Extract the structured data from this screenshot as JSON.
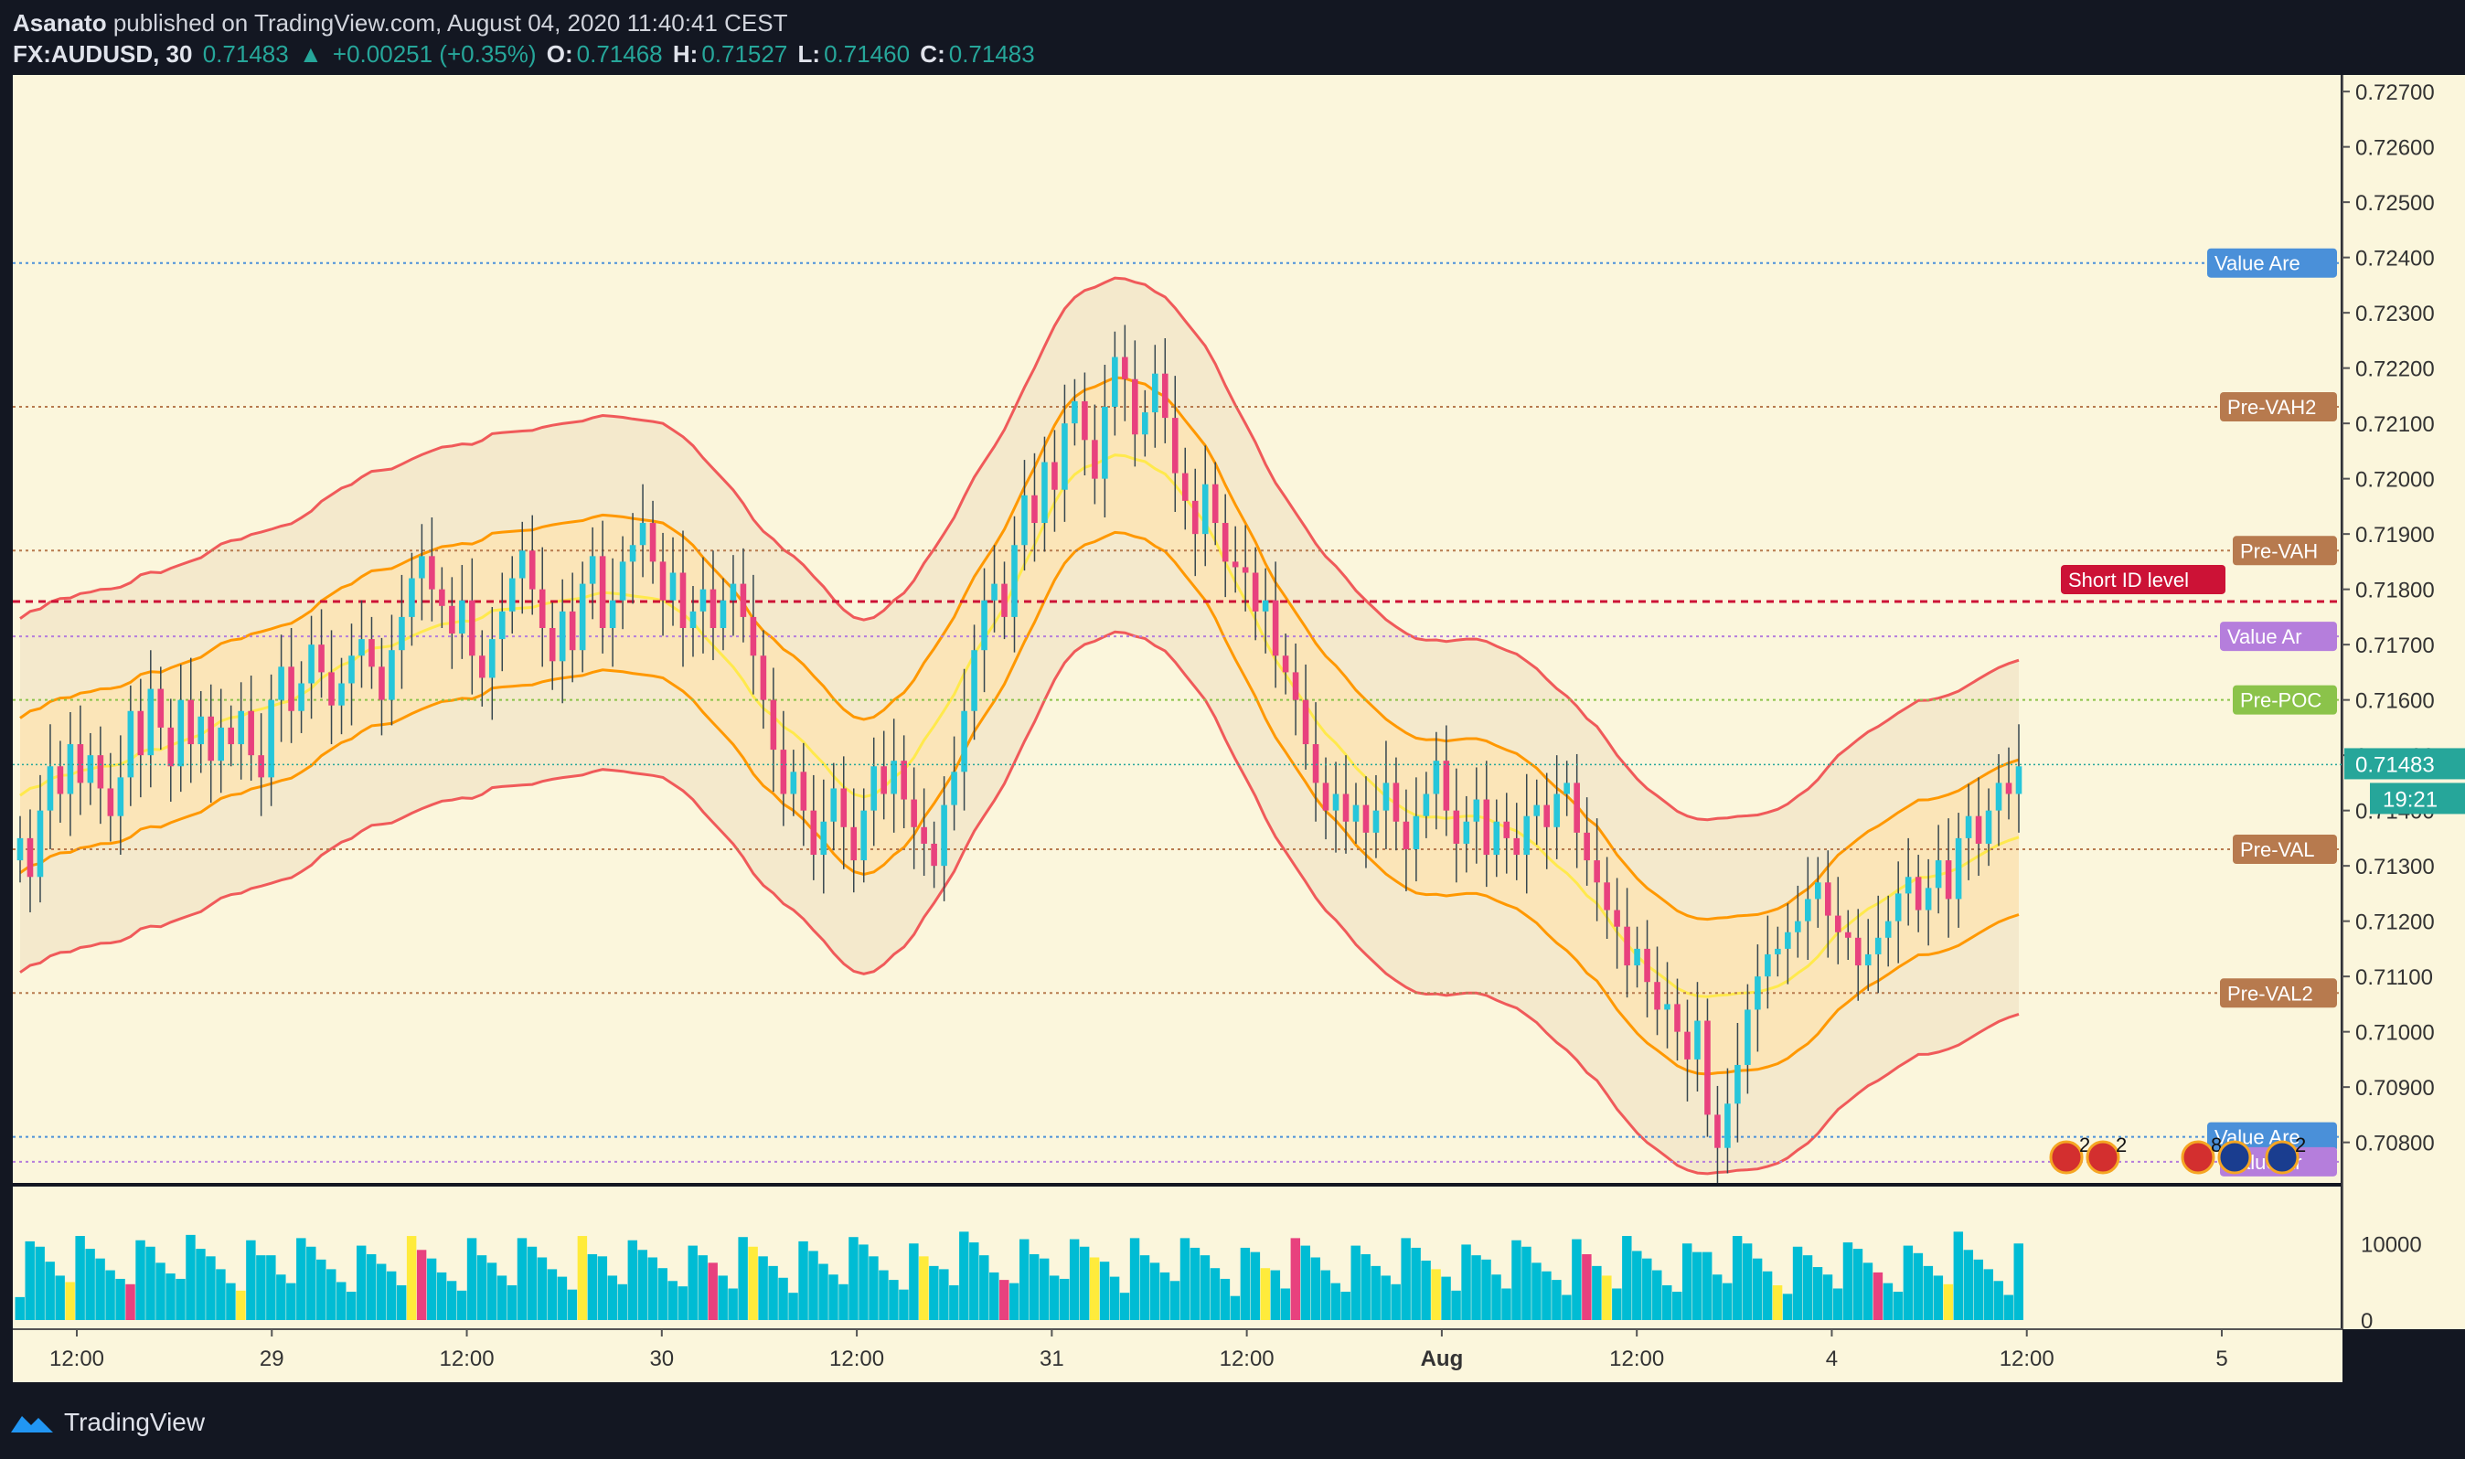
{
  "header": {
    "author": "Asanato",
    "published": "published on TradingView.com, August 04, 2020 11:40:41 CEST",
    "symbol": "FX:AUDUSD, 30",
    "last": "0.71483",
    "change": "+0.00251 (+0.35%)",
    "o_label": "O:",
    "o": "0.71468",
    "h_label": "H:",
    "h": "0.71527",
    "l_label": "L:",
    "l": "0.71460",
    "c_label": "C:",
    "c": "0.71483"
  },
  "footer": {
    "brand": "TradingView",
    "logo_icon": "tradingview-cloud-icon"
  },
  "colors": {
    "bg": "#fbf6dc",
    "frame": "#131722",
    "bull": "#26c6da",
    "bear": "#e8417e",
    "band_red": "#f05a5a",
    "band_orange": "#ff9800",
    "band_yellow": "#ffe94d",
    "value_area_blue": "#4a90d9",
    "value_area_purple": "#b57edc",
    "pre_level_brown": "#b77a4e",
    "pre_poc_green": "#8bc34a",
    "short_id": "#cc1236",
    "price_tag": "#26a69a"
  },
  "chart_data": {
    "type": "candlestick",
    "symbol": "FX:AUDUSD",
    "timeframe": "30",
    "ylim": [
      0.7073,
      0.7273
    ],
    "y_ticks": [
      "0.72700",
      "0.72600",
      "0.72500",
      "0.72400",
      "0.72300",
      "0.72200",
      "0.72100",
      "0.72000",
      "0.71900",
      "0.71800",
      "0.71700",
      "0.71600",
      "0.71500",
      "0.71400",
      "0.71300",
      "0.71200",
      "0.71100",
      "0.71000",
      "0.70900",
      "0.70800"
    ],
    "x_ticks": [
      "12:00",
      "29",
      "12:00",
      "30",
      "12:00",
      "31",
      "12:00",
      "Aug",
      "12:00",
      "4",
      "12:00",
      "5"
    ],
    "current_price": "0.71483",
    "countdown": "19:21",
    "levels": [
      {
        "label": "Value Are",
        "price": 0.7239,
        "color": "#4a90d9"
      },
      {
        "label": "Pre-VAH2",
        "price": 0.7213,
        "color": "#b77a4e"
      },
      {
        "label": "Pre-VAH",
        "price": 0.7187,
        "color": "#b77a4e"
      },
      {
        "label": "Short ID level",
        "price": 0.71778,
        "color": "#cc1236"
      },
      {
        "label": "Value Ar",
        "price": 0.71715,
        "color": "#b57edc"
      },
      {
        "label": "Pre-POC",
        "price": 0.716,
        "color": "#8bc34a"
      },
      {
        "label": "Pre-VAL",
        "price": 0.7133,
        "color": "#b77a4e"
      },
      {
        "label": "Pre-VAL2",
        "price": 0.7107,
        "color": "#b77a4e"
      },
      {
        "label": "Value Are",
        "price": 0.7081,
        "color": "#4a90d9"
      },
      {
        "label": "Value Ar",
        "price": 0.70765,
        "color": "#b57edc"
      }
    ],
    "events": [
      {
        "icon": "us-flag-icon",
        "count": "2"
      },
      {
        "icon": "us-flag-icon",
        "count": "2"
      },
      {
        "icon": "us-flag-icon",
        "count": "8"
      },
      {
        "icon": "au-flag-icon",
        "count": ""
      },
      {
        "icon": "au-flag-icon",
        "count": "2"
      }
    ],
    "volume": {
      "ylim": [
        0,
        16000
      ],
      "ticks": [
        "10000",
        "0"
      ]
    },
    "candles_close": [
      0.7135,
      0.7128,
      0.714,
      0.7148,
      0.7143,
      0.7152,
      0.7145,
      0.715,
      0.7144,
      0.7139,
      0.7146,
      0.7158,
      0.715,
      0.7162,
      0.7155,
      0.7148,
      0.716,
      0.7152,
      0.7157,
      0.7149,
      0.7155,
      0.7152,
      0.7158,
      0.715,
      0.7146,
      0.716,
      0.7166,
      0.7158,
      0.7163,
      0.717,
      0.7165,
      0.7159,
      0.7163,
      0.7168,
      0.7171,
      0.7166,
      0.716,
      0.7169,
      0.7175,
      0.7182,
      0.7186,
      0.718,
      0.7177,
      0.7172,
      0.7178,
      0.7168,
      0.7164,
      0.7171,
      0.7176,
      0.7182,
      0.7187,
      0.718,
      0.7173,
      0.7167,
      0.7176,
      0.7169,
      0.7181,
      0.7186,
      0.7173,
      0.7178,
      0.7185,
      0.7188,
      0.7192,
      0.7185,
      0.7178,
      0.7183,
      0.7173,
      0.7176,
      0.718,
      0.7173,
      0.7178,
      0.7181,
      0.7175,
      0.7168,
      0.716,
      0.7151,
      0.7143,
      0.7147,
      0.714,
      0.7132,
      0.7138,
      0.7144,
      0.7137,
      0.7131,
      0.714,
      0.7148,
      0.7143,
      0.7149,
      0.7142,
      0.7137,
      0.7134,
      0.713,
      0.7141,
      0.7147,
      0.7158,
      0.7169,
      0.7178,
      0.7181,
      0.7175,
      0.7188,
      0.7197,
      0.7192,
      0.7203,
      0.7198,
      0.721,
      0.7214,
      0.7207,
      0.72,
      0.7213,
      0.7222,
      0.7218,
      0.7208,
      0.7212,
      0.7219,
      0.7211,
      0.7201,
      0.7196,
      0.719,
      0.7199,
      0.7192,
      0.7185,
      0.7184,
      0.7183,
      0.7176,
      0.7178,
      0.7168,
      0.7165,
      0.716,
      0.7152,
      0.7145,
      0.714,
      0.7143,
      0.7138,
      0.7141,
      0.7136,
      0.714,
      0.7145,
      0.7138,
      0.7133,
      0.7139,
      0.7143,
      0.7149,
      0.714,
      0.7134,
      0.7138,
      0.7142,
      0.7132,
      0.7138,
      0.7135,
      0.7132,
      0.7139,
      0.7141,
      0.7137,
      0.7143,
      0.7145,
      0.7136,
      0.7131,
      0.7127,
      0.7122,
      0.7119,
      0.7112,
      0.7115,
      0.7109,
      0.7104,
      0.7105,
      0.71,
      0.7095,
      0.7102,
      0.7085,
      0.7079,
      0.7087,
      0.7094,
      0.7104,
      0.711,
      0.7114,
      0.7115,
      0.7118,
      0.712,
      0.7124,
      0.7127,
      0.7121,
      0.7118,
      0.7117,
      0.7112,
      0.7114,
      0.7117,
      0.712,
      0.7125,
      0.7128,
      0.7122,
      0.7126,
      0.7131,
      0.7124,
      0.7135,
      0.7139,
      0.7134,
      0.714,
      0.7145,
      0.7143,
      0.7148
    ]
  }
}
